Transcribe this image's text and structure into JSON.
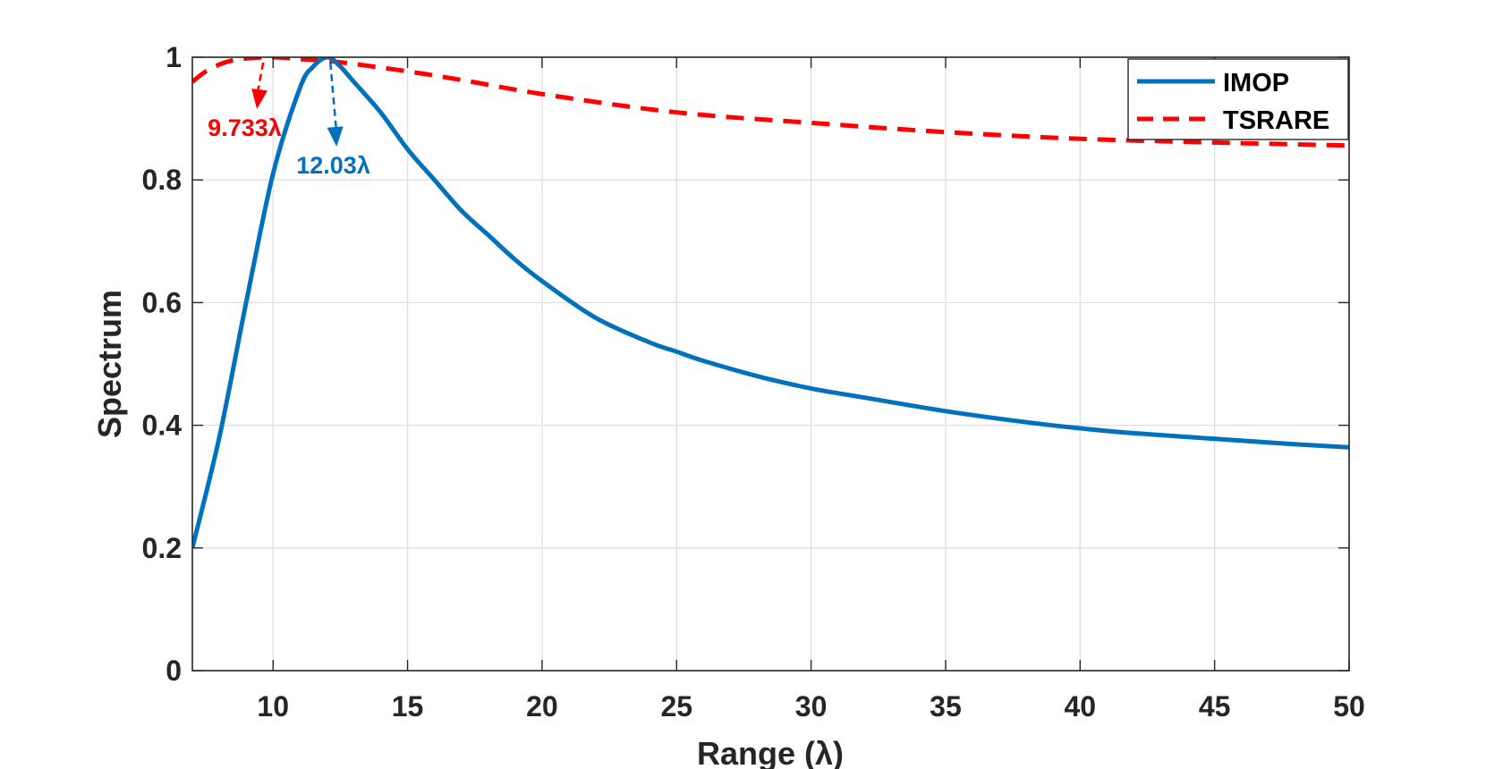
{
  "chart_data": {
    "type": "line",
    "title": "",
    "xlabel": "Range (λ)",
    "ylabel": "Spectrum",
    "xlim": [
      7,
      50
    ],
    "ylim": [
      0,
      1
    ],
    "xticks": [
      10,
      15,
      20,
      25,
      30,
      35,
      40,
      45,
      50
    ],
    "yticks": [
      0,
      0.2,
      0.4,
      0.6,
      0.8,
      1
    ],
    "x_tick_labels": [
      "10",
      "15",
      "20",
      "25",
      "30",
      "35",
      "40",
      "45",
      "50"
    ],
    "y_tick_labels": [
      "0",
      "0.2",
      "0.4",
      "0.6",
      "0.8",
      "1"
    ],
    "grid": true,
    "legend_position": "top-right",
    "series": [
      {
        "name": "IMOP",
        "color": "#0072BD",
        "style": "solid",
        "x": [
          7,
          8,
          9,
          10,
          11,
          11.5,
          12.03,
          12.5,
          13,
          14,
          15,
          16,
          17,
          18,
          19,
          20,
          22,
          24,
          25,
          26,
          28,
          30,
          32,
          35,
          38,
          40,
          42,
          45,
          48,
          50
        ],
        "y": [
          0.2,
          0.38,
          0.6,
          0.81,
          0.95,
          0.985,
          1.0,
          0.985,
          0.96,
          0.91,
          0.85,
          0.8,
          0.75,
          0.71,
          0.67,
          0.635,
          0.575,
          0.535,
          0.52,
          0.505,
          0.48,
          0.46,
          0.445,
          0.423,
          0.405,
          0.395,
          0.387,
          0.378,
          0.369,
          0.364
        ]
      },
      {
        "name": "TSRARE",
        "color": "#FF0000",
        "style": "dashed",
        "x": [
          7,
          7.5,
          8,
          8.5,
          9,
          9.733,
          10.5,
          11,
          12,
          13,
          15,
          17,
          20,
          25,
          30,
          35,
          40,
          45,
          50
        ],
        "y": [
          0.96,
          0.977,
          0.988,
          0.995,
          0.998,
          1.0,
          0.999,
          0.997,
          0.994,
          0.989,
          0.977,
          0.963,
          0.94,
          0.91,
          0.893,
          0.878,
          0.867,
          0.861,
          0.856
        ]
      }
    ],
    "annotations": [
      {
        "text": "9.733λ",
        "peak_x": 9.733,
        "color": "#FF0000"
      },
      {
        "text": "12.03λ",
        "peak_x": 12.03,
        "color": "#0072BD"
      }
    ]
  }
}
